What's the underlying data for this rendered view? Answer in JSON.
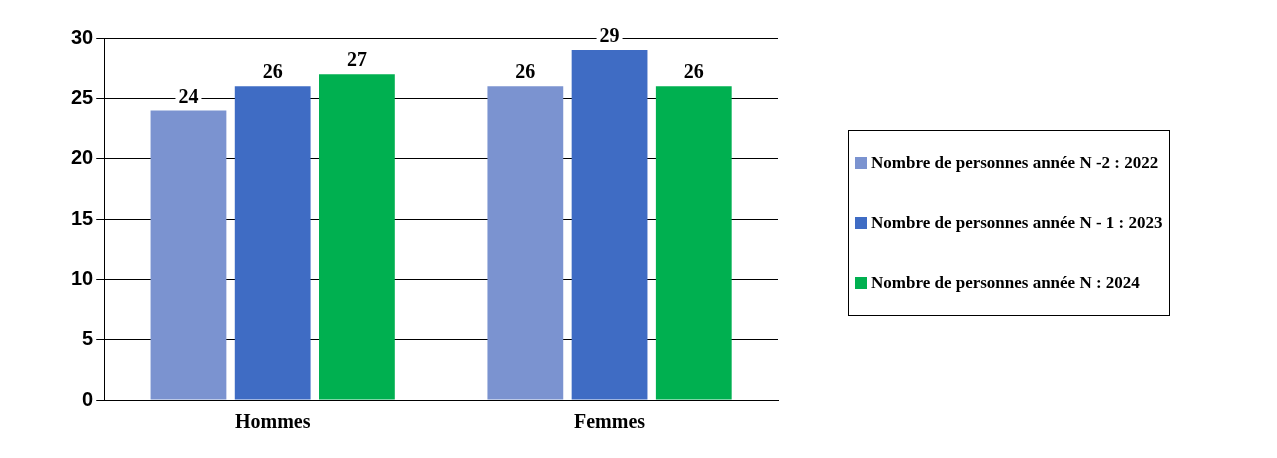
{
  "chart_data": {
    "type": "bar",
    "categories": [
      "Hommes",
      "Femmes"
    ],
    "series": [
      {
        "name": "Nombre de personnes année N -2 : 2022",
        "color": "#7b93d0",
        "values": [
          24,
          26
        ]
      },
      {
        "name": "Nombre de personnes année N - 1 : 2023",
        "color": "#3f6cc4",
        "values": [
          26,
          29
        ]
      },
      {
        "name": "Nombre de personnes année N : 2024",
        "color": "#00b050",
        "values": [
          27,
          26
        ]
      }
    ],
    "ylim": [
      0,
      30
    ],
    "yticks": [
      0,
      5,
      10,
      15,
      20,
      25,
      30
    ],
    "grid": "y",
    "legend": "right",
    "data_labels": true
  }
}
